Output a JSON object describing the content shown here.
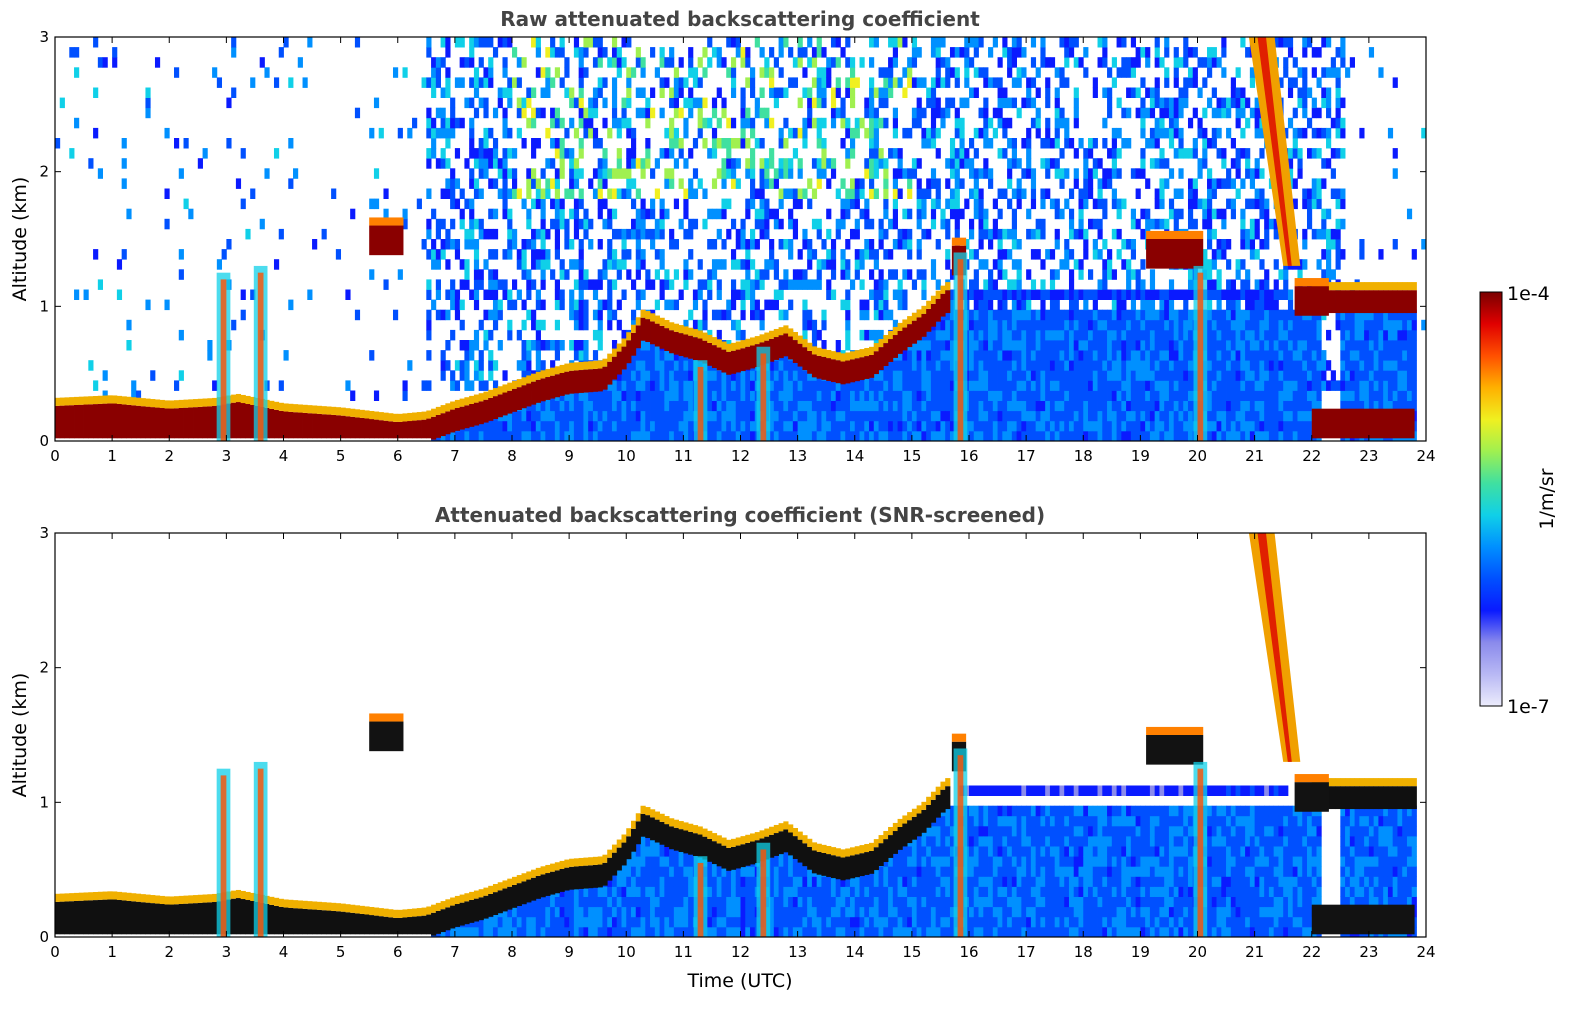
{
  "chart_data": [
    {
      "type": "heatmap",
      "title": "Raw attenuated backscattering coefficient",
      "xlabel": "",
      "ylabel": "Altitude (km)",
      "xlim": [
        0,
        24
      ],
      "ylim": [
        0,
        3
      ],
      "xticks": [
        "0",
        "1",
        "2",
        "3",
        "4",
        "5",
        "6",
        "7",
        "8",
        "9",
        "10",
        "11",
        "12",
        "13",
        "14",
        "15",
        "16",
        "17",
        "18",
        "19",
        "20",
        "21",
        "22",
        "23",
        "24"
      ],
      "yticks": [
        "0",
        "1",
        "2",
        "3"
      ],
      "screened": false,
      "features": {
        "boundary_layer_height_km": [
          [
            0,
            0.22
          ],
          [
            1,
            0.24
          ],
          [
            2,
            0.2
          ],
          [
            2.8,
            0.22
          ],
          [
            3.2,
            0.25
          ],
          [
            4,
            0.18
          ],
          [
            5,
            0.15
          ],
          [
            5.6,
            0.12
          ],
          [
            6,
            0.1
          ],
          [
            6.5,
            0.12
          ],
          [
            7,
            0.2
          ],
          [
            7.5,
            0.26
          ],
          [
            8,
            0.34
          ],
          [
            8.5,
            0.42
          ],
          [
            9,
            0.48
          ],
          [
            9.6,
            0.5
          ],
          [
            10,
            0.68
          ],
          [
            10.3,
            0.88
          ],
          [
            10.8,
            0.78
          ],
          [
            11.3,
            0.72
          ],
          [
            11.8,
            0.62
          ],
          [
            12.3,
            0.68
          ],
          [
            12.8,
            0.76
          ],
          [
            13.3,
            0.6
          ],
          [
            13.8,
            0.55
          ],
          [
            14.3,
            0.6
          ],
          [
            14.8,
            0.78
          ],
          [
            15.2,
            0.9
          ],
          [
            15.6,
            1.08
          ]
        ],
        "elevated_layers": [
          {
            "t_start": 5.5,
            "t_end": 6.1,
            "alt_km": 1.5
          },
          {
            "t_start": 15.7,
            "t_end": 15.95,
            "alt_km": 1.35
          },
          {
            "t_start": 19.1,
            "t_end": 20.1,
            "alt_km": 1.4
          },
          {
            "t_start": 21.7,
            "t_end": 22.3,
            "alt_km": 1.05
          }
        ],
        "high_cloud": {
          "t_at_top": 21.0,
          "t_at_base": 21.6,
          "top_km": 3.0,
          "base_km": 1.3
        },
        "evening_layer": {
          "t_start": 22.0,
          "t_end": 23.8,
          "alt_km": 0.12
        }
      }
    },
    {
      "type": "heatmap",
      "title": "Attenuated backscattering coefficient (SNR-screened)",
      "xlabel": "Time (UTC)",
      "ylabel": "Altitude (km)",
      "xlim": [
        0,
        24
      ],
      "ylim": [
        0,
        3
      ],
      "xticks": [
        "0",
        "1",
        "2",
        "3",
        "4",
        "5",
        "6",
        "7",
        "8",
        "9",
        "10",
        "11",
        "12",
        "13",
        "14",
        "15",
        "16",
        "17",
        "18",
        "19",
        "20",
        "21",
        "22",
        "23",
        "24"
      ],
      "yticks": [
        "0",
        "1",
        "2",
        "3"
      ],
      "screened": true
    }
  ],
  "colorbar": {
    "label": "1/m/sr",
    "max_label": "1e-4",
    "min_label": "1e-7",
    "scale": "log",
    "range": [
      1e-07,
      0.0001
    ],
    "colors": [
      "#ececfc",
      "#b8b8f4",
      "#8a8aec",
      "#0a1aff",
      "#0050ff",
      "#0090ff",
      "#10d0e8",
      "#40e0a0",
      "#a0f050",
      "#f0f020",
      "#ffb000",
      "#ff5000",
      "#e00000",
      "#7a0000"
    ]
  }
}
